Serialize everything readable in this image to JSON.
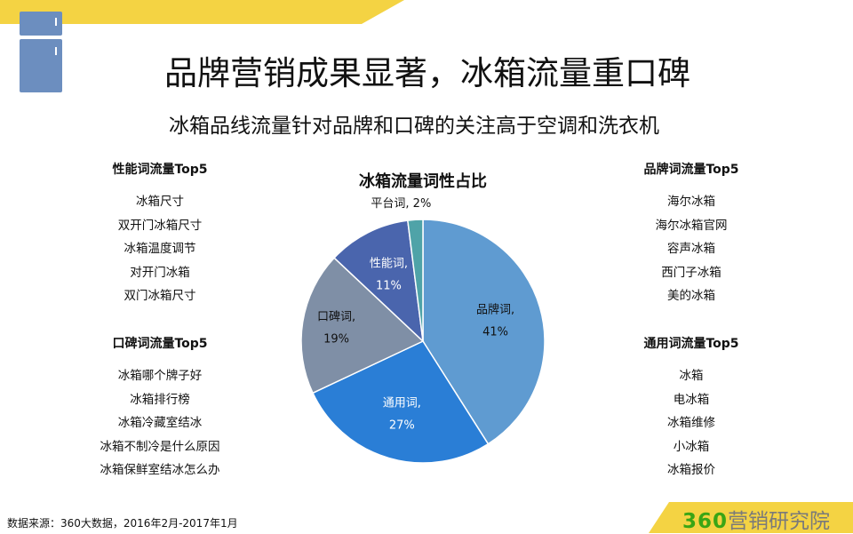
{
  "title": "品牌营销成果显著，冰箱流量重口碑",
  "subtitle": "冰箱品线流量针对品牌和口碑的关注高于空调和洗衣机",
  "colors": {
    "accent_yellow": "#f4d343",
    "fridge_blue": "#6c8ebf",
    "brand_green": "#3aa515"
  },
  "icons": {
    "header": "fridge-icon"
  },
  "left_top": {
    "heading": "性能词流量Top5",
    "items": [
      "冰箱尺寸",
      "双开门冰箱尺寸",
      "冰箱温度调节",
      "对开门冰箱",
      "双门冰箱尺寸"
    ]
  },
  "left_bottom": {
    "heading": "口碑词流量Top5",
    "items": [
      "冰箱哪个牌子好",
      "冰箱排行榜",
      "冰箱冷藏室结冰",
      "冰箱不制冷是什么原因",
      "冰箱保鲜室结冰怎么办"
    ]
  },
  "right_top": {
    "heading": "品牌词流量Top5",
    "items": [
      "海尔冰箱",
      "海尔冰箱官网",
      "容声冰箱",
      "西门子冰箱",
      "美的冰箱"
    ]
  },
  "right_bottom": {
    "heading": "通用词流量Top5",
    "items": [
      "冰箱",
      "电冰箱",
      "冰箱维修",
      "小冰箱",
      "冰箱报价"
    ]
  },
  "chart_data": {
    "type": "pie",
    "title": "冰箱流量词性占比",
    "categories": [
      "品牌词",
      "通用词",
      "口碑词",
      "性能词",
      "平台词"
    ],
    "values": [
      41,
      27,
      19,
      11,
      2
    ],
    "labels": [
      "41%",
      "27%",
      "19%",
      "11%",
      "2%"
    ],
    "colors": [
      "#5f9bd1",
      "#2a7ed6",
      "#7f8fa6",
      "#4a65ad",
      "#4fa3a8"
    ],
    "label_colors": [
      "#111",
      "#fff",
      "#111",
      "#fff",
      "#111"
    ],
    "start": "12 o'clock",
    "direction": "clockwise"
  },
  "footer": {
    "source": "数据来源：360大数据，2016年2月-2017年1月",
    "brand_number": "360",
    "brand_text": "营销研究院"
  }
}
